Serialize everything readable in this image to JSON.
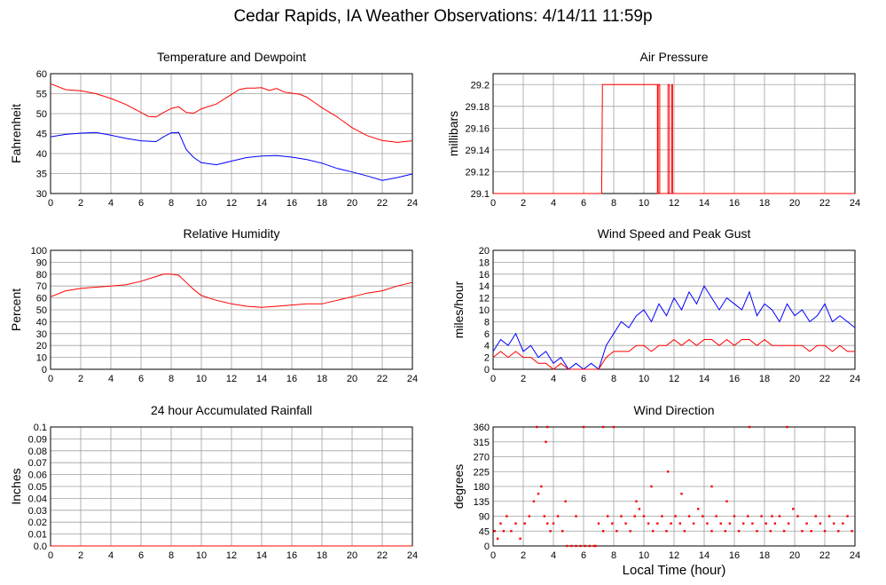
{
  "title": "Cedar Rapids, IA Weather Observations: 4/14/11 11:59p",
  "x_axis_title": "Local Time (hour)",
  "colors": {
    "red": "#ff0000",
    "blue": "#0000ff",
    "grid": "#a0a0a0"
  },
  "chart_data": [
    {
      "id": "temp",
      "type": "line",
      "title": "Temperature and Dewpoint",
      "ylabel": "Fahrenheit",
      "xlim": [
        0,
        24
      ],
      "ylim": [
        30,
        60
      ],
      "yticks": [
        30,
        35,
        40,
        45,
        50,
        55,
        60
      ],
      "xticks": [
        0,
        2,
        4,
        6,
        8,
        10,
        12,
        14,
        16,
        18,
        20,
        22,
        24
      ],
      "grid": true,
      "series": [
        {
          "color": "#ff0000",
          "x": [
            0,
            1,
            2,
            3,
            4,
            5,
            6,
            6.5,
            7,
            7.5,
            8,
            8.5,
            9,
            9.5,
            10,
            11,
            12,
            12.5,
            13,
            13.5,
            14,
            14.5,
            15,
            15.5,
            16,
            16.5,
            17,
            17.5,
            18,
            19,
            20,
            21,
            22,
            23,
            24
          ],
          "y": [
            57.5,
            56,
            55.7,
            55,
            53.8,
            52.3,
            50.3,
            49.3,
            49.2,
            50.3,
            51.3,
            51.7,
            50.3,
            50.1,
            51.2,
            52.4,
            54.8,
            56,
            56.4,
            56.4,
            56.5,
            55.8,
            56.3,
            55.4,
            55.1,
            54.9,
            54.1,
            52.8,
            51.5,
            49.2,
            46.5,
            44.5,
            43.3,
            42.8,
            43.2
          ]
        },
        {
          "color": "#0000ff",
          "x": [
            0,
            1,
            2,
            3,
            4,
            5,
            6,
            7,
            7.5,
            8,
            8.5,
            9,
            9.5,
            10,
            11,
            12,
            13,
            14,
            15,
            16,
            17,
            18,
            19,
            20,
            21,
            22,
            23,
            24
          ],
          "y": [
            44.2,
            44.8,
            45.1,
            45.3,
            44.6,
            43.8,
            43.2,
            43,
            44.2,
            45.2,
            45.3,
            41,
            39,
            37.7,
            37.2,
            38.1,
            39,
            39.4,
            39.5,
            39.1,
            38.5,
            37.6,
            36.3,
            35.4,
            34.4,
            33.3,
            34,
            34.9
          ]
        }
      ]
    },
    {
      "id": "pressure",
      "type": "line",
      "title": "Air Pressure",
      "ylabel": "millibars",
      "xlim": [
        0,
        24
      ],
      "ylim": [
        29.1,
        29.21
      ],
      "yticks": [
        29.1,
        29.12,
        29.14,
        29.16,
        29.18,
        29.2
      ],
      "ytick_labels": [
        "29.1",
        "29.12",
        "29.14",
        "29.16",
        "29.18",
        "29.2"
      ],
      "xticks": [
        0,
        2,
        4,
        6,
        8,
        10,
        12,
        14,
        16,
        18,
        20,
        22,
        24
      ],
      "grid": true,
      "series": [
        {
          "color": "#ff0000",
          "x": [
            0,
            7.2,
            7.25,
            10.9,
            10.9,
            10.95,
            10.95,
            11.05,
            11.05,
            11.6,
            11.6,
            11.7,
            11.7,
            11.85,
            11.85,
            11.9,
            11.9,
            24
          ],
          "y": [
            29.1,
            29.1,
            29.2,
            29.2,
            29.1,
            29.1,
            29.2,
            29.2,
            29.1,
            29.1,
            29.2,
            29.2,
            29.1,
            29.1,
            29.2,
            29.2,
            29.1,
            29.1
          ]
        }
      ]
    },
    {
      "id": "humidity",
      "type": "line",
      "title": "Relative Humidity",
      "ylabel": "Percent",
      "xlim": [
        0,
        24
      ],
      "ylim": [
        0,
        100
      ],
      "yticks": [
        0,
        10,
        20,
        30,
        40,
        50,
        60,
        70,
        80,
        90,
        100
      ],
      "xticks": [
        0,
        2,
        4,
        6,
        8,
        10,
        12,
        14,
        16,
        18,
        20,
        22,
        24
      ],
      "grid": true,
      "series": [
        {
          "color": "#ff0000",
          "x": [
            0,
            1,
            2,
            3,
            4,
            5,
            6,
            7,
            7.5,
            8,
            8.5,
            9,
            9.5,
            10,
            11,
            12,
            13,
            14,
            15,
            16,
            17,
            18,
            19,
            20,
            21,
            22,
            23,
            24
          ],
          "y": [
            61,
            66,
            68,
            69,
            70,
            71,
            74,
            78,
            80,
            80,
            79,
            73,
            67,
            62,
            58,
            55,
            53,
            52,
            53,
            54,
            55,
            55,
            58,
            61,
            64,
            66,
            70,
            73
          ]
        }
      ]
    },
    {
      "id": "wind",
      "type": "line",
      "title": "Wind Speed and Peak Gust",
      "ylabel": "miles/hour",
      "xlim": [
        0,
        24
      ],
      "ylim": [
        0,
        20
      ],
      "yticks": [
        0,
        2,
        4,
        6,
        8,
        10,
        12,
        14,
        16,
        18,
        20
      ],
      "xticks": [
        0,
        2,
        4,
        6,
        8,
        10,
        12,
        14,
        16,
        18,
        20,
        22,
        24
      ],
      "grid": true,
      "series": [
        {
          "color": "#0000ff",
          "x": [
            0,
            0.5,
            1,
            1.5,
            2,
            2.5,
            3,
            3.5,
            4,
            4.5,
            5,
            5.5,
            6,
            6.5,
            7,
            7.5,
            8,
            8.5,
            9,
            9.5,
            10,
            10.5,
            11,
            11.5,
            12,
            12.5,
            13,
            13.5,
            14,
            14.5,
            15,
            15.5,
            16,
            16.5,
            17,
            17.5,
            18,
            18.5,
            19,
            19.5,
            20,
            20.5,
            21,
            21.5,
            22,
            22.5,
            23,
            23.5,
            24
          ],
          "y": [
            3,
            5,
            4,
            6,
            3,
            4,
            2,
            3,
            1,
            2,
            0,
            1,
            0,
            1,
            0,
            4,
            6,
            8,
            7,
            9,
            10,
            8,
            11,
            9,
            12,
            10,
            13,
            11,
            14,
            12,
            10,
            12,
            11,
            10,
            13,
            9,
            11,
            10,
            8,
            11,
            9,
            10,
            8,
            9,
            11,
            8,
            9,
            8,
            7
          ]
        },
        {
          "color": "#ff0000",
          "x": [
            0,
            0.5,
            1,
            1.5,
            2,
            2.5,
            3,
            3.5,
            4,
            4.5,
            5,
            5.5,
            6,
            6.5,
            7,
            7.5,
            8,
            8.5,
            9,
            9.5,
            10,
            10.5,
            11,
            11.5,
            12,
            12.5,
            13,
            13.5,
            14,
            14.5,
            15,
            15.5,
            16,
            16.5,
            17,
            17.5,
            18,
            18.5,
            19,
            19.5,
            20,
            20.5,
            21,
            21.5,
            22,
            22.5,
            23,
            23.5,
            24
          ],
          "y": [
            2,
            3,
            2,
            3,
            2,
            2,
            1,
            1,
            0,
            1,
            0,
            0,
            0,
            0,
            0,
            2,
            3,
            3,
            3,
            4,
            4,
            3,
            4,
            4,
            5,
            4,
            5,
            4,
            5,
            5,
            4,
            5,
            4,
            5,
            5,
            4,
            5,
            4,
            4,
            4,
            4,
            4,
            3,
            4,
            4,
            3,
            4,
            3,
            3
          ]
        }
      ]
    },
    {
      "id": "rain",
      "type": "line",
      "title": "24 hour Accumulated Rainfall",
      "ylabel": "Inches",
      "xlim": [
        0,
        24
      ],
      "ylim": [
        0,
        0.1
      ],
      "yticks": [
        0,
        0.01,
        0.02,
        0.03,
        0.04,
        0.05,
        0.06,
        0.07,
        0.08,
        0.09,
        0.1
      ],
      "ytick_labels": [
        "0.0",
        "0.01",
        "0.02",
        "0.03",
        "0.04",
        "0.05",
        "0.06",
        "0.07",
        "0.08",
        "0.09",
        "0.1"
      ],
      "xticks": [
        0,
        2,
        4,
        6,
        8,
        10,
        12,
        14,
        16,
        18,
        20,
        22,
        24
      ],
      "grid": true,
      "series": [
        {
          "color": "#ff0000",
          "x": [
            0,
            24
          ],
          "y": [
            0,
            0
          ]
        }
      ]
    },
    {
      "id": "direction",
      "type": "scatter",
      "title": "Wind Direction",
      "ylabel": "degrees",
      "xlim": [
        0,
        24
      ],
      "ylim": [
        0,
        360
      ],
      "yticks": [
        0,
        45,
        90,
        135,
        180,
        225,
        270,
        315,
        360
      ],
      "xticks": [
        0,
        2,
        4,
        6,
        8,
        10,
        12,
        14,
        16,
        18,
        20,
        22,
        24
      ],
      "grid": true,
      "series": [
        {
          "color": "#ff0000",
          "x": [
            0.1,
            0.3,
            0.5,
            0.7,
            0.9,
            1.2,
            1.5,
            1.8,
            2.1,
            2.4,
            2.7,
            3.0,
            3.2,
            3.4,
            3.6,
            3.8,
            4.0,
            4.3,
            4.6,
            4.9,
            5.2,
            5.5,
            5.8,
            6.1,
            6.4,
            6.7,
            7.0,
            7.3,
            7.6,
            7.9,
            8.2,
            8.5,
            8.8,
            9.1,
            9.4,
            9.7,
            10.0,
            10.3,
            10.6,
            10.9,
            11.2,
            11.5,
            11.8,
            12.1,
            12.4,
            12.7,
            13.0,
            13.3,
            13.6,
            13.9,
            14.2,
            14.5,
            14.8,
            15.1,
            15.4,
            15.7,
            16.0,
            16.3,
            16.6,
            16.9,
            17.2,
            17.5,
            17.8,
            18.1,
            18.4,
            18.7,
            19.0,
            19.3,
            19.6,
            19.9,
            20.2,
            20.5,
            20.8,
            21.1,
            21.4,
            21.7,
            22.0,
            22.3,
            22.6,
            22.9,
            23.2,
            23.5,
            23.8,
            2.9,
            3.6,
            6.0,
            7.3,
            8.0,
            9.5,
            10.5,
            11.6,
            12.5,
            14.5,
            15.5,
            17.0,
            18.5,
            19.5,
            3.5,
            4.8,
            5.5,
            6.8
          ],
          "y": [
            45,
            22,
            68,
            45,
            90,
            45,
            68,
            22,
            68,
            90,
            135,
            158,
            180,
            90,
            68,
            45,
            68,
            90,
            45,
            0,
            0,
            0,
            0,
            0,
            0,
            0,
            68,
            45,
            90,
            68,
            45,
            90,
            68,
            45,
            90,
            112,
            90,
            68,
            45,
            68,
            90,
            45,
            68,
            90,
            68,
            45,
            90,
            68,
            112,
            90,
            68,
            45,
            90,
            68,
            45,
            68,
            90,
            45,
            68,
            90,
            68,
            45,
            90,
            68,
            45,
            68,
            90,
            45,
            68,
            112,
            90,
            45,
            68,
            45,
            90,
            68,
            45,
            90,
            68,
            45,
            68,
            90,
            45,
            360,
            360,
            360,
            360,
            360,
            135,
            180,
            225,
            158,
            180,
            135,
            360,
            90,
            360,
            315,
            135,
            90,
            0
          ]
        }
      ]
    }
  ]
}
